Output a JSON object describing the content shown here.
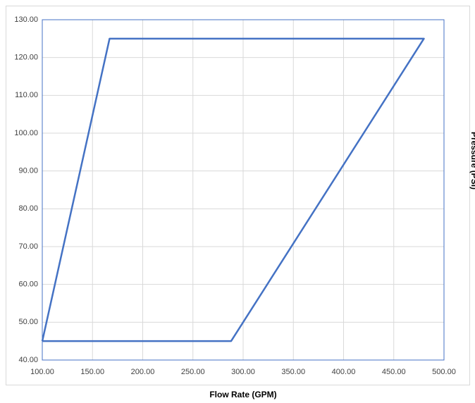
{
  "chart_data": {
    "type": "line",
    "x_label": "Flow Rate (GPM)",
    "y_label": "Pressure (PSI)",
    "series": [
      {
        "color": "#4472c4",
        "x": [
          100,
          167,
          480,
          288,
          100
        ],
        "values": [
          45,
          125,
          125,
          45,
          45
        ]
      }
    ],
    "xlim": [
      100,
      500
    ],
    "xticks": [
      {
        "value": 100,
        "label": "100.00"
      },
      {
        "value": 150,
        "label": "150.00"
      },
      {
        "value": 200,
        "label": "200.00"
      },
      {
        "value": 250,
        "label": "250.00"
      },
      {
        "value": 300,
        "label": "300.00"
      },
      {
        "value": 350,
        "label": "350.00"
      },
      {
        "value": 400,
        "label": "400.00"
      },
      {
        "value": 450,
        "label": "450.00"
      },
      {
        "value": 500,
        "label": "500.00"
      }
    ],
    "ylim": [
      40,
      130
    ],
    "yticks": [
      {
        "value": 40,
        "label": "40.00"
      },
      {
        "value": 50,
        "label": "50.00"
      },
      {
        "value": 60,
        "label": "60.00"
      },
      {
        "value": 70,
        "label": "70.00"
      },
      {
        "value": 80,
        "label": "80.00"
      },
      {
        "value": 90,
        "label": "90.00"
      },
      {
        "value": 100,
        "label": "100.00"
      },
      {
        "value": 110,
        "label": "110.00"
      },
      {
        "value": 120,
        "label": "120.00"
      },
      {
        "value": 130,
        "label": "130.00"
      }
    ],
    "grid": true
  }
}
